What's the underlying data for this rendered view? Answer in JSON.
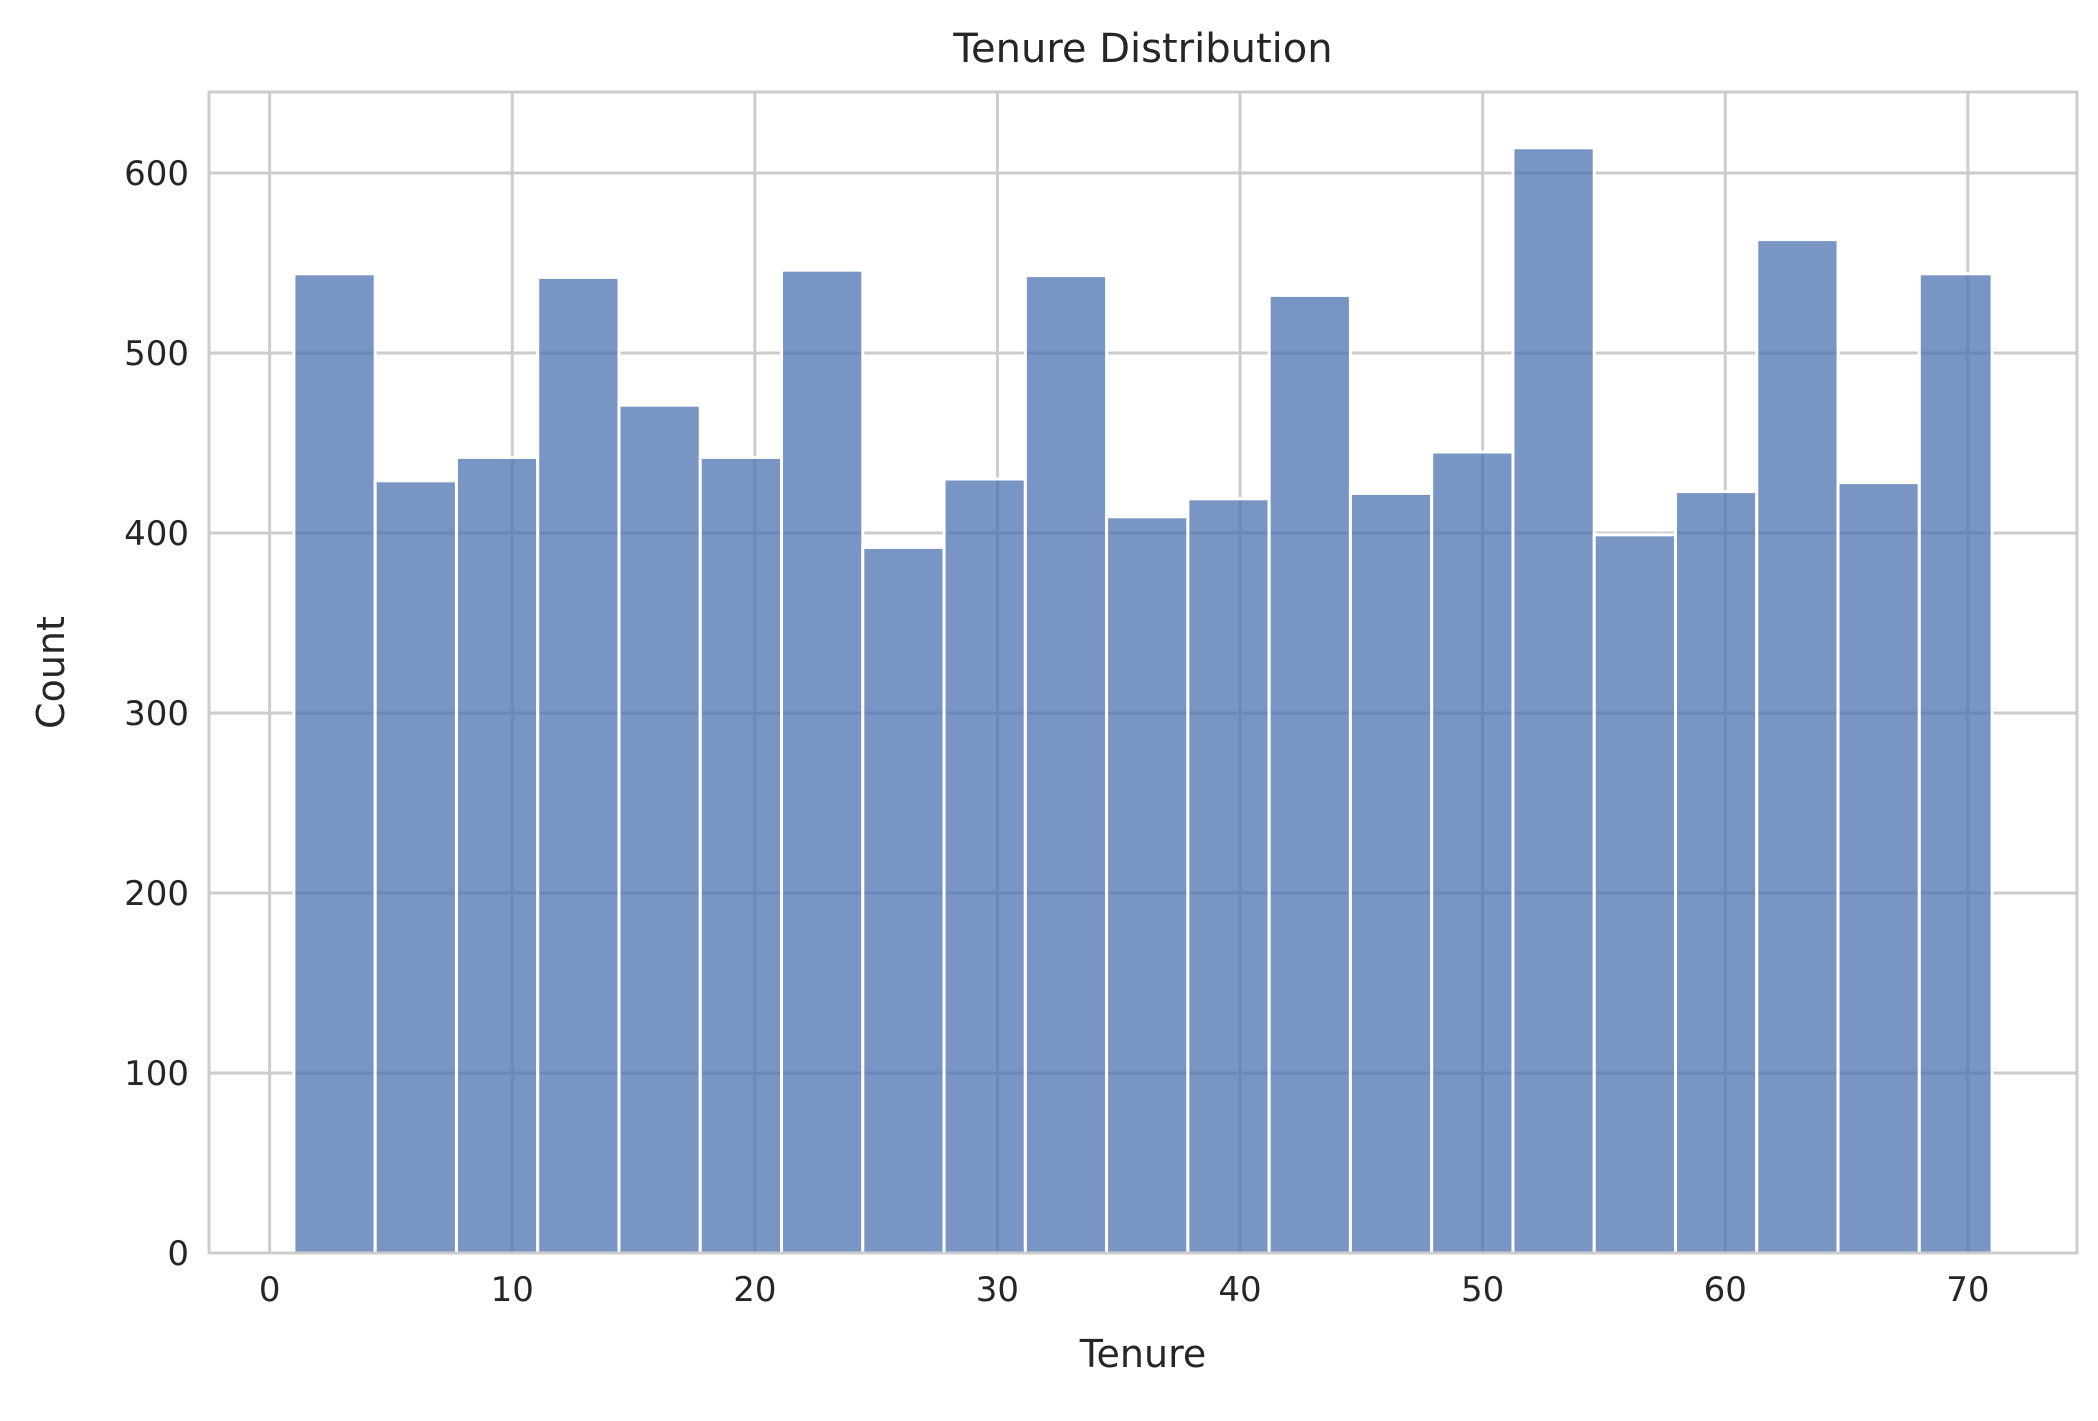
{
  "chart_data": {
    "type": "bar",
    "title": "Tenure Distribution",
    "xlabel": "Tenure",
    "ylabel": "Count",
    "bin_edges": [
      1.0,
      4.35,
      7.7,
      11.05,
      14.4,
      17.75,
      21.1,
      24.45,
      27.8,
      31.15,
      34.5,
      37.85,
      41.2,
      44.55,
      47.9,
      51.25,
      54.6,
      57.95,
      61.3,
      64.65,
      68.0,
      71.0
    ],
    "values": [
      544,
      429,
      442,
      542,
      471,
      442,
      546,
      392,
      430,
      543,
      409,
      419,
      532,
      422,
      445,
      614,
      399,
      423,
      563,
      428,
      544
    ],
    "xlim": [
      -2.5,
      74.5
    ],
    "ylim": [
      0,
      645
    ],
    "x_ticks": [
      0,
      10,
      20,
      30,
      40,
      50,
      60,
      70
    ],
    "y_ticks": [
      0,
      100,
      200,
      300,
      400,
      500,
      600
    ],
    "grid": true,
    "bar_color": "#4c72b0",
    "grid_color": "#cccccc"
  }
}
